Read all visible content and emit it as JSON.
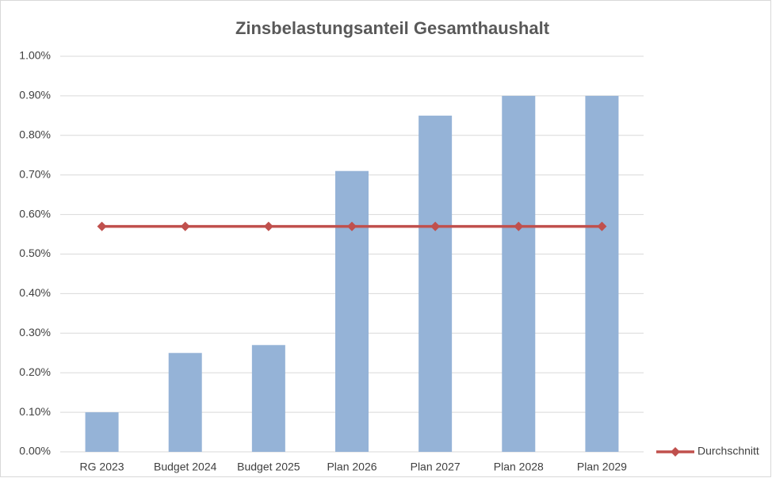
{
  "chart_data": {
    "type": "bar",
    "title": "Zinsbelastungsanteil Gesamthaushalt",
    "categories": [
      "RG 2023",
      "Budget 2024",
      "Budget 2025",
      "Plan 2026",
      "Plan 2027",
      "Plan 2028",
      "Plan 2029"
    ],
    "series": [
      {
        "type": "bar",
        "color": "#95b3d7",
        "values": [
          0.1,
          0.25,
          0.27,
          0.71,
          0.85,
          0.9,
          0.9
        ]
      },
      {
        "type": "line",
        "name": "Durchschnitt",
        "color": "#c0504d",
        "values": [
          0.57,
          0.57,
          0.57,
          0.57,
          0.57,
          0.57,
          0.57
        ]
      }
    ],
    "ylim": [
      0,
      1
    ],
    "yticks": [
      {
        "value": 0,
        "label": "0.00%"
      },
      {
        "value": 0.1,
        "label": "0.10%"
      },
      {
        "value": 0.2,
        "label": "0.20%"
      },
      {
        "value": 0.3,
        "label": "0.30%"
      },
      {
        "value": 0.4,
        "label": "0.40%"
      },
      {
        "value": 0.5,
        "label": "0.50%"
      },
      {
        "value": 0.6,
        "label": "0.60%"
      },
      {
        "value": 0.7,
        "label": "0.70%"
      },
      {
        "value": 0.8,
        "label": "0.80%"
      },
      {
        "value": 0.9,
        "label": "0.90%"
      },
      {
        "value": 1,
        "label": "1.00%"
      }
    ],
    "grid": true,
    "legend": "right"
  }
}
